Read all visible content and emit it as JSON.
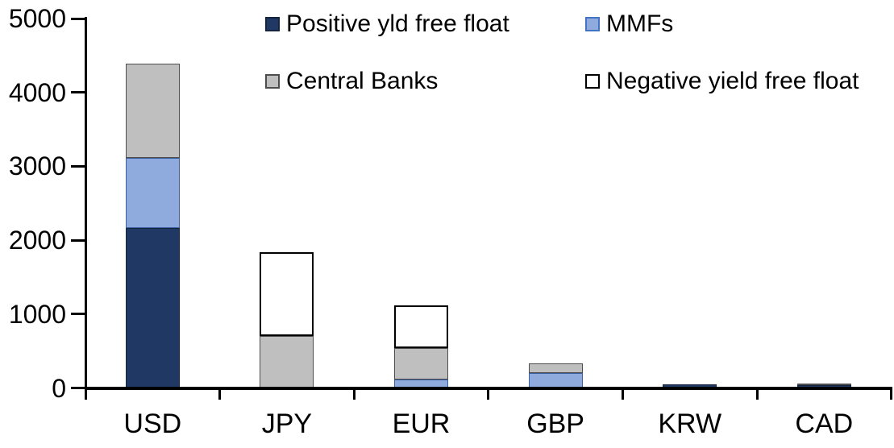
{
  "chart_data": {
    "type": "bar",
    "stacked": true,
    "title": "",
    "xlabel": "",
    "ylabel": "",
    "categories": [
      "USD",
      "JPY",
      "EUR",
      "GBP",
      "KRW",
      "CAD"
    ],
    "series": [
      {
        "name": "Positive yld free float",
        "color": "#203864",
        "border_color": "#15253f",
        "values": [
          2160,
          0,
          0,
          0,
          45,
          35
        ]
      },
      {
        "name": "MMFs",
        "color": "#8faadc",
        "border_color": "#3c5fa0",
        "values": [
          950,
          0,
          110,
          205,
          0,
          0
        ]
      },
      {
        "name": "Central Banks",
        "color": "#bfbfbf",
        "border_color": "#4d4d4d",
        "values": [
          1280,
          700,
          430,
          125,
          0,
          30
        ]
      },
      {
        "name": "Negative yield free float",
        "color": "#ffffff",
        "border_color": "#000000",
        "values": [
          0,
          1140,
          580,
          0,
          0,
          0
        ]
      }
    ],
    "totals": [
      4390,
      1840,
      1120,
      330,
      45,
      65
    ],
    "ylim": [
      0,
      5000
    ],
    "yticks": [
      0,
      1000,
      2000,
      3000,
      4000,
      5000
    ],
    "grid": false,
    "legend_position": "top-two-columns",
    "axis_color": "#000000",
    "background_color": "#ffffff"
  },
  "legend": {
    "items": [
      {
        "label": "Positive yld free float",
        "series_index": 0
      },
      {
        "label": "MMFs",
        "series_index": 1
      },
      {
        "label": "Central Banks",
        "series_index": 2
      },
      {
        "label": "Negative yield free float",
        "series_index": 3
      }
    ]
  }
}
